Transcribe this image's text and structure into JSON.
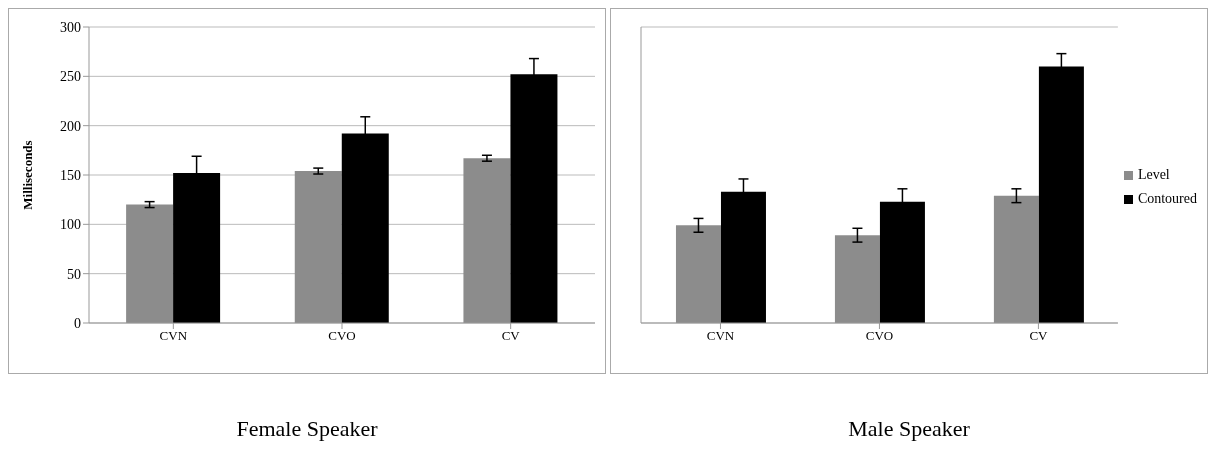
{
  "chart_data": [
    {
      "type": "bar",
      "title": "Female Speaker",
      "ylabel": "Milliseconds",
      "categories": [
        "CVN",
        "CVO",
        "CV"
      ],
      "series": [
        {
          "color": "#8c8c8c",
          "values": [
            120,
            154,
            167
          ],
          "errors": [
            3,
            3,
            3
          ]
        },
        {
          "color": "#000000",
          "values": [
            152,
            192,
            252
          ],
          "errors": [
            17,
            17,
            16
          ]
        }
      ],
      "ylim": [
        0,
        300
      ],
      "yticks": [
        0,
        50,
        100,
        150,
        200,
        250,
        300
      ],
      "grid": "y",
      "legend": false
    },
    {
      "type": "bar",
      "title": "Male Speaker",
      "categories": [
        "CVN",
        "CVO",
        "CV"
      ],
      "series": [
        {
          "name": "Level",
          "color": "#8c8c8c",
          "values": [
            99,
            89,
            129
          ],
          "errors": [
            7,
            7,
            7
          ]
        },
        {
          "name": "Contoured",
          "color": "#000000",
          "values": [
            133,
            123,
            260
          ],
          "errors": [
            13,
            13,
            13
          ]
        }
      ],
      "ylim": [
        0,
        300
      ],
      "yticks": [
        0,
        50,
        100,
        150,
        200,
        250,
        300
      ],
      "grid": "y",
      "legend": "right",
      "tick_labels": "x"
    }
  ]
}
